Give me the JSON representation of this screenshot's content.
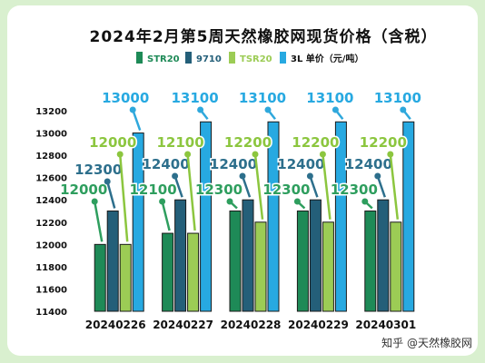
{
  "chart_data": {
    "type": "bar",
    "title": "2024年2月第5周天然橡胶网现货价格（含税）",
    "categories": [
      "20240226",
      "20240227",
      "20240228",
      "20240229",
      "20240301"
    ],
    "series": [
      {
        "name": "STR20",
        "values": [
          12000,
          12100,
          12300,
          12300,
          12300
        ],
        "labels": [
          "12000",
          "12100",
          "12300",
          "12300",
          "12300"
        ],
        "color": "#1e8a57",
        "arrow_color": "#2e9e5e"
      },
      {
        "name": "9710",
        "values": [
          12300,
          12400,
          12400,
          12400,
          12400
        ],
        "labels": [
          "12300",
          "12400",
          "12400",
          "12400",
          "12400"
        ],
        "color": "#245f79",
        "arrow_color": "#2d6f8c"
      },
      {
        "name": "TSR20",
        "values": [
          12000,
          12100,
          12200,
          12200,
          12200
        ],
        "labels": [
          "12000",
          "12100",
          "12200",
          "12200",
          "12200"
        ],
        "color": "#9ccc55",
        "arrow_color": "#8cc63f"
      },
      {
        "name": "3L 单价（元/吨）",
        "values": [
          13000,
          13100,
          13100,
          13100,
          13100
        ],
        "labels": [
          "13000",
          "13100",
          "13100",
          "13100",
          "13100"
        ],
        "color": "#27a9e1",
        "arrow_color": "#2fa8dc"
      }
    ],
    "ylim": [
      11400,
      13200
    ],
    "yticks": [
      11400,
      11600,
      11800,
      12000,
      12200,
      12400,
      12600,
      12800,
      13000,
      13200
    ],
    "grid": false,
    "legend": "top"
  },
  "watermark": "知乎 @天然橡胶网"
}
